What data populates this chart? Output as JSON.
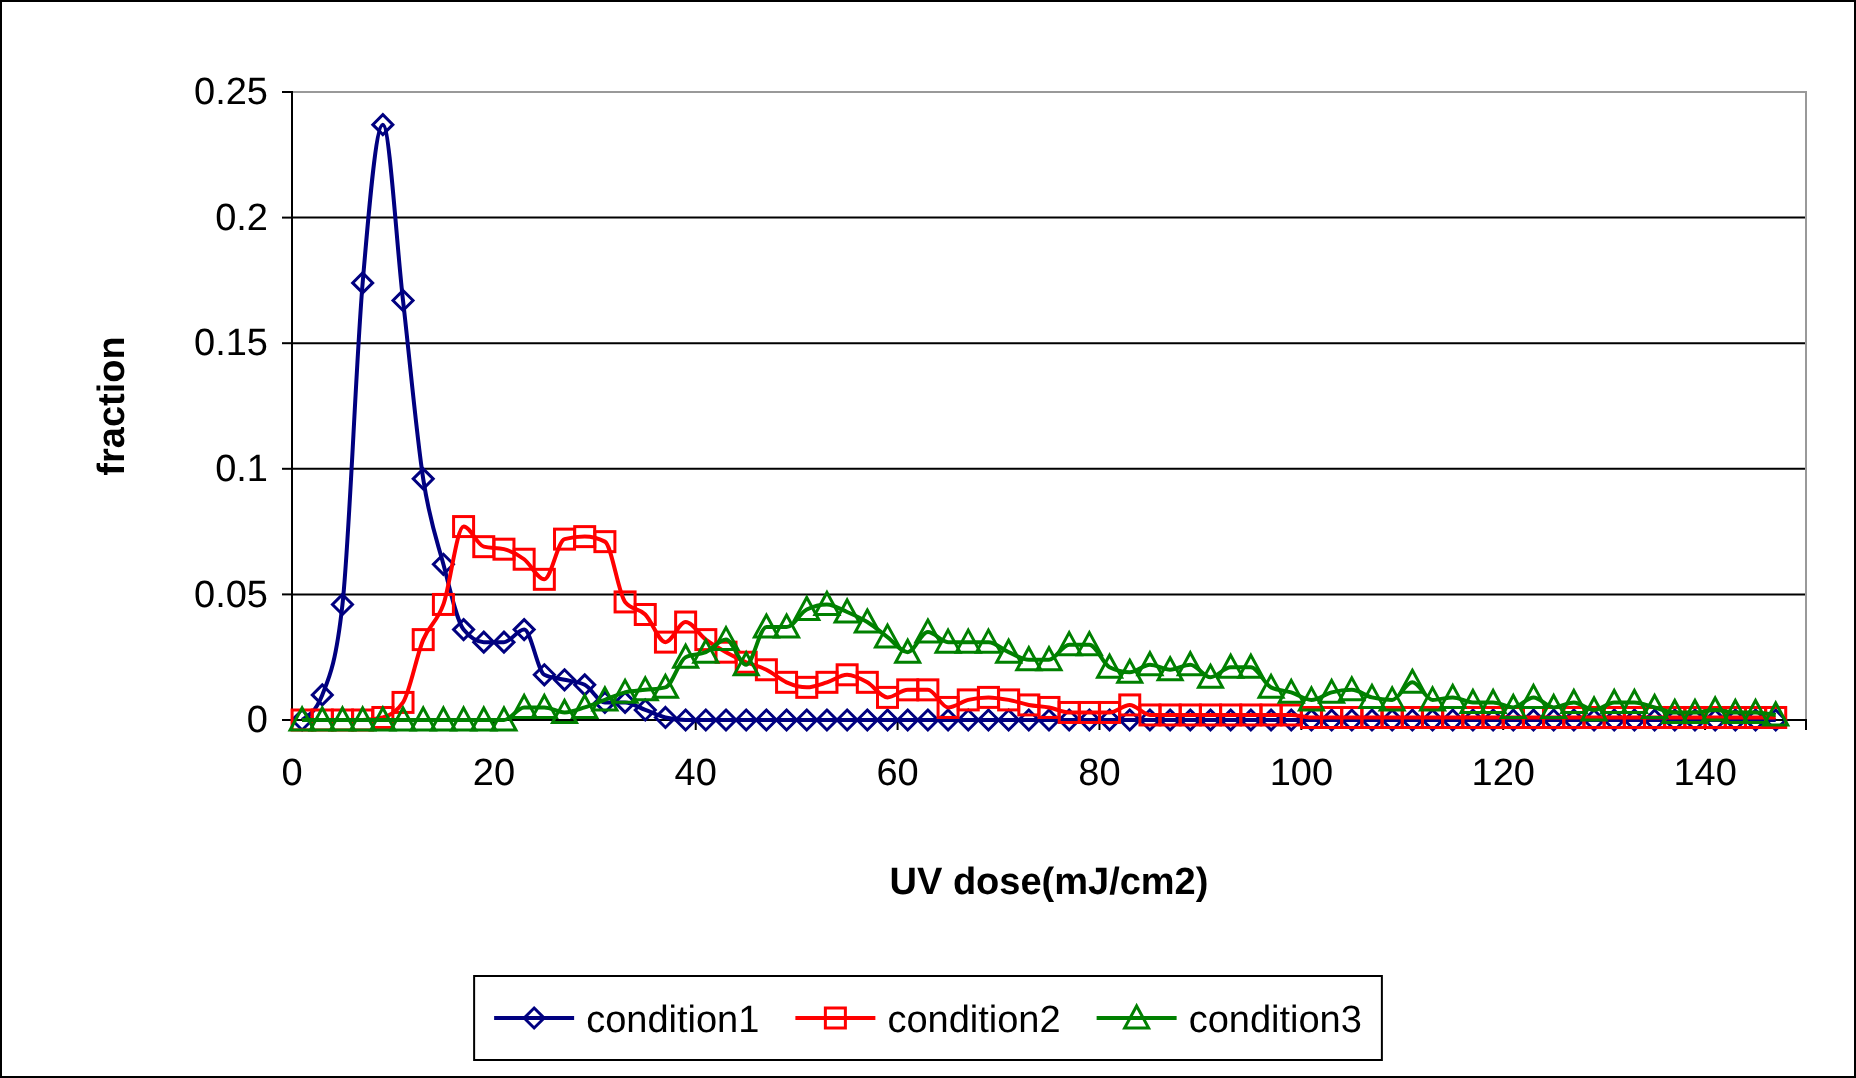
{
  "chart_data": {
    "type": "line",
    "xlabel": "UV dose(mJ/cm2)",
    "ylabel": "fraction",
    "x": [
      1,
      3,
      5,
      7,
      9,
      11,
      13,
      15,
      17,
      19,
      21,
      23,
      25,
      27,
      29,
      31,
      33,
      35,
      37,
      39,
      41,
      43,
      45,
      47,
      49,
      51,
      53,
      55,
      57,
      59,
      61,
      63,
      65,
      67,
      69,
      71,
      73,
      75,
      77,
      79,
      81,
      83,
      85,
      87,
      89,
      91,
      93,
      95,
      97,
      99,
      101,
      103,
      105,
      107,
      109,
      111,
      113,
      115,
      117,
      119,
      121,
      123,
      125,
      127,
      129,
      131,
      133,
      135,
      137,
      139,
      141,
      143,
      145,
      147
    ],
    "series": [
      {
        "name": "condition1",
        "color": "#000080",
        "marker": "diamond",
        "values": [
          0,
          0.01,
          0.046,
          0.174,
          0.237,
          0.167,
          0.096,
          0.062,
          0.036,
          0.031,
          0.031,
          0.036,
          0.018,
          0.016,
          0.014,
          0.007,
          0.007,
          0.004,
          0.001,
          0,
          0,
          0,
          0,
          0,
          0,
          0,
          0,
          0,
          0,
          0,
          0,
          0,
          0,
          0,
          0,
          0,
          0,
          0,
          0,
          0,
          0,
          0,
          0,
          0,
          0,
          0,
          0,
          0,
          0,
          0,
          0,
          0,
          0,
          0,
          0,
          0,
          0,
          0,
          0,
          0,
          0,
          0,
          0,
          0,
          0,
          0,
          0,
          0,
          0,
          0,
          0,
          0,
          0,
          0
        ]
      },
      {
        "name": "condition2",
        "color": "#ff0000",
        "marker": "square",
        "values": [
          0,
          0,
          0,
          0,
          0.001,
          0.007,
          0.032,
          0.046,
          0.077,
          0.069,
          0.068,
          0.064,
          0.056,
          0.072,
          0.073,
          0.071,
          0.047,
          0.042,
          0.031,
          0.039,
          0.032,
          0.027,
          0.023,
          0.02,
          0.015,
          0.013,
          0.015,
          0.018,
          0.015,
          0.009,
          0.012,
          0.012,
          0.005,
          0.008,
          0.009,
          0.008,
          0.006,
          0.005,
          0.003,
          0.003,
          0.003,
          0.006,
          0.002,
          0.002,
          0.002,
          0.002,
          0.002,
          0.002,
          0.002,
          0.002,
          0.001,
          0.001,
          0.001,
          0.001,
          0.001,
          0.001,
          0.001,
          0.001,
          0.001,
          0.001,
          0.001,
          0.001,
          0.001,
          0.001,
          0.001,
          0.001,
          0.001,
          0.001,
          0.001,
          0.001,
          0.001,
          0.001,
          0.001,
          0.001
        ]
      },
      {
        "name": "condition3",
        "color": "#008000",
        "marker": "triangle",
        "values": [
          0,
          0,
          0,
          0,
          0,
          0,
          0,
          0,
          0,
          0,
          0,
          0.005,
          0.005,
          0.003,
          0.005,
          0.008,
          0.011,
          0.012,
          0.013,
          0.025,
          0.027,
          0.032,
          0.022,
          0.037,
          0.037,
          0.044,
          0.046,
          0.043,
          0.039,
          0.033,
          0.027,
          0.035,
          0.031,
          0.031,
          0.031,
          0.027,
          0.024,
          0.024,
          0.03,
          0.03,
          0.021,
          0.019,
          0.022,
          0.02,
          0.022,
          0.017,
          0.021,
          0.021,
          0.013,
          0.011,
          0.008,
          0.011,
          0.012,
          0.009,
          0.008,
          0.015,
          0.008,
          0.009,
          0.007,
          0.007,
          0.005,
          0.009,
          0.005,
          0.007,
          0.004,
          0.007,
          0.007,
          0.005,
          0.003,
          0.003,
          0.004,
          0.003,
          0.003,
          0.002
        ]
      }
    ],
    "xlim": [
      0,
      150
    ],
    "xticks": [
      0,
      20,
      40,
      60,
      80,
      100,
      120,
      140
    ],
    "ylim": [
      0,
      0.25
    ],
    "yticks": [
      0,
      0.05,
      0.1,
      0.15,
      0.2,
      0.25
    ],
    "grid": "y",
    "legend": "bottom"
  }
}
